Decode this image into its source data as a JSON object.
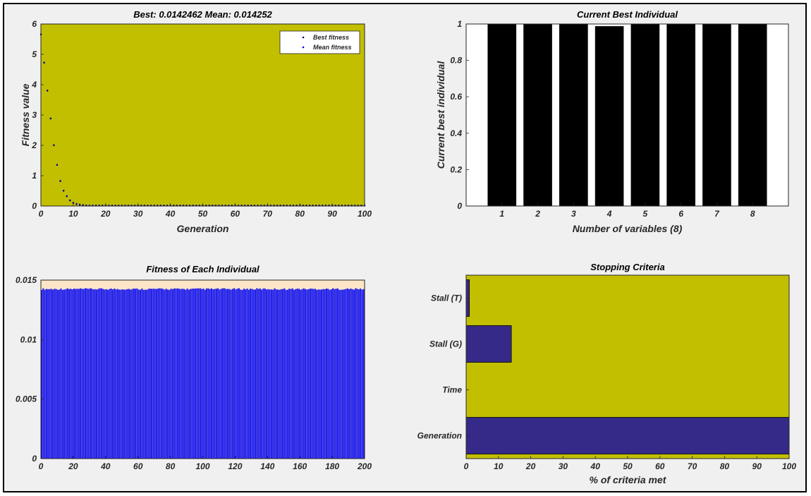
{
  "colors": {
    "figure_bg": "#f0f0f0",
    "axes_bg_olive": "#c1bf00",
    "axes_bg_peach": "#fde6c8",
    "bar_black": "#000000",
    "bar_blue": "#1a1aff",
    "bar_navy": "#352a87",
    "best_marker": "#000080",
    "mean_marker": "#0000ff"
  },
  "chart_data": [
    {
      "id": "fitness-plot",
      "type": "scatter",
      "title": "Best: 0.0142462 Mean: 0.014252",
      "xlabel": "Generation",
      "ylabel": "Fitness value",
      "xlim": [
        0,
        100
      ],
      "ylim": [
        0,
        6
      ],
      "xticks": [
        0,
        10,
        20,
        30,
        40,
        50,
        60,
        70,
        80,
        90,
        100
      ],
      "yticks": [
        0,
        1,
        2,
        3,
        4,
        5,
        6
      ],
      "legend_position": "top-right",
      "grid": false,
      "series": [
        {
          "name": "Best fitness",
          "x": [
            0,
            1,
            2,
            3,
            4,
            5,
            6,
            7,
            8,
            9,
            10,
            11,
            12,
            13,
            14,
            15
          ],
          "y": [
            5.65,
            4.72,
            3.8,
            2.88,
            2.0,
            1.35,
            0.82,
            0.5,
            0.32,
            0.18,
            0.1,
            0.06,
            0.04,
            0.03,
            0.02,
            0.0142
          ],
          "tail_value": 0.0142462
        },
        {
          "name": "Mean fitness",
          "x": [
            0,
            1,
            2,
            3,
            4,
            5,
            6,
            7,
            8,
            9,
            10,
            11,
            12,
            13,
            14,
            15
          ],
          "y": [
            5.66,
            4.73,
            3.81,
            2.89,
            2.01,
            1.36,
            0.83,
            0.51,
            0.33,
            0.19,
            0.11,
            0.07,
            0.05,
            0.03,
            0.02,
            0.0143
          ],
          "tail_value": 0.014252
        }
      ]
    },
    {
      "id": "best-individual",
      "type": "bar",
      "title": "Current Best Individual",
      "xlabel": "Number of variables (8)",
      "ylabel": "Current best individual",
      "categories": [
        "1",
        "2",
        "3",
        "4",
        "5",
        "6",
        "7",
        "8"
      ],
      "values": [
        1,
        1,
        1,
        0.988,
        1,
        1,
        1,
        1
      ],
      "xlim": [
        0,
        9
      ],
      "ylim": [
        0,
        1
      ],
      "yticks": [
        "0",
        "0.2",
        "0.4",
        "0.6",
        "0.8",
        "1"
      ]
    },
    {
      "id": "individual-fitness",
      "type": "bar",
      "title": "Fitness of Each Individual",
      "xlabel": "",
      "ylabel": "",
      "individual_count": 200,
      "value_min": 0.01418,
      "value_max": 0.01432,
      "xlim": [
        0,
        200
      ],
      "ylim": [
        0,
        0.015
      ],
      "xticks": [
        0,
        20,
        40,
        60,
        80,
        100,
        120,
        140,
        160,
        180,
        200
      ],
      "yticks": [
        "0",
        "0.005",
        "0.01",
        "0.015"
      ]
    },
    {
      "id": "stopping-criteria",
      "type": "bar",
      "orientation": "horizontal",
      "title": "Stopping Criteria",
      "xlabel": "% of criteria met",
      "ylabel": "",
      "categories": [
        "Generation",
        "Time",
        "Stall (G)",
        "Stall (T)"
      ],
      "values": [
        100,
        0,
        14,
        1
      ],
      "xlim": [
        0,
        100
      ],
      "xticks": [
        0,
        10,
        20,
        30,
        40,
        50,
        60,
        70,
        80,
        90,
        100
      ]
    }
  ]
}
